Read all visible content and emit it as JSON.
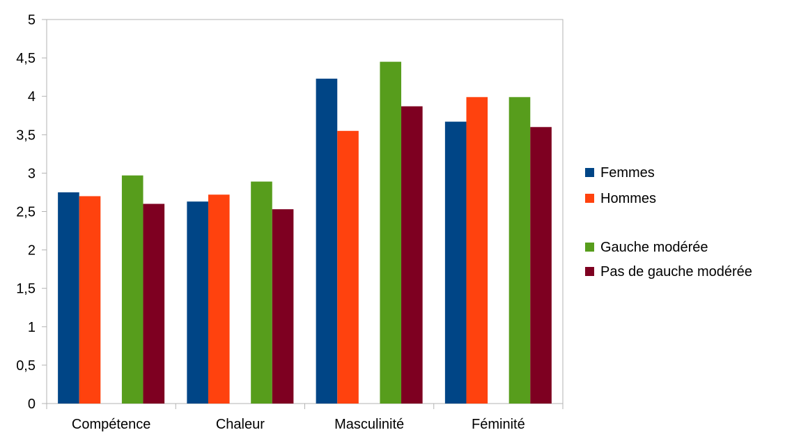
{
  "chart_data": {
    "type": "bar",
    "categories": [
      "Compétence",
      "Chaleur",
      "Masculinité",
      "Féminité"
    ],
    "ylim": [
      0,
      5
    ],
    "yticks": [
      0,
      0.5,
      1,
      1.5,
      2,
      2.5,
      3,
      3.5,
      4,
      4.5,
      5
    ],
    "ytick_labels": [
      "0",
      "0,5",
      "1",
      "1,5",
      "2",
      "2,5",
      "3",
      "3,5",
      "4",
      "4,5",
      "5"
    ],
    "grid": false,
    "legend_position": "right",
    "series": [
      {
        "name": "Femmes",
        "color": "#004586",
        "values": [
          2.75,
          2.63,
          4.23,
          3.67
        ]
      },
      {
        "name": "Hommes",
        "color": "#FF420E",
        "values": [
          2.7,
          2.72,
          3.55,
          3.99
        ]
      },
      {
        "name": "Gauche modérée",
        "color": "#579D1C",
        "values": [
          2.97,
          2.89,
          4.45,
          3.99
        ]
      },
      {
        "name": "Pas de gauche modérée",
        "color": "#7E0021",
        "values": [
          2.6,
          2.53,
          3.87,
          3.6
        ]
      }
    ]
  }
}
